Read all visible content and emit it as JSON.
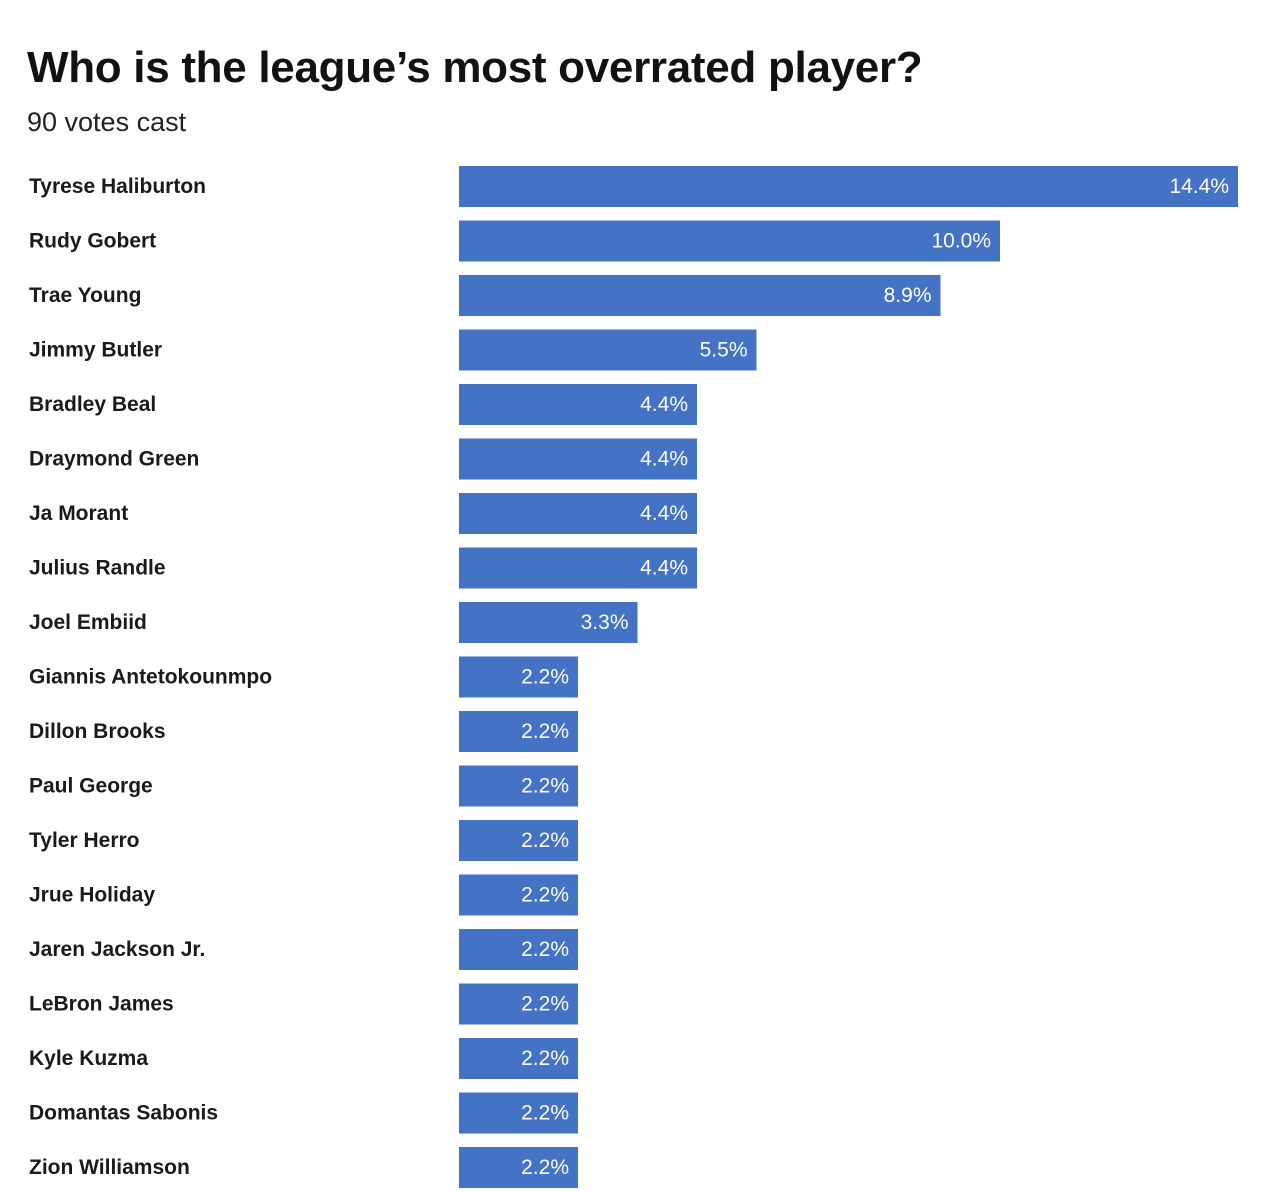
{
  "header": {
    "title": "Who is the league’s most overrated player?",
    "subtitle": "90 votes cast"
  },
  "colors": {
    "bar": "#4472c4",
    "value_label": "#ffffff",
    "category_label": "#1a1a1a"
  },
  "chart_data": {
    "type": "bar",
    "orientation": "horizontal",
    "title": "Who is the league’s most overrated player?",
    "subtitle": "90 votes cast",
    "xlabel": "",
    "ylabel": "",
    "value_suffix": "%",
    "xlim": [
      0,
      14.4
    ],
    "grid": false,
    "legend": "none",
    "categories": [
      "Tyrese Haliburton",
      "Rudy Gobert",
      "Trae Young",
      "Jimmy Butler",
      "Bradley Beal",
      "Draymond Green",
      "Ja Morant",
      "Julius Randle",
      "Joel Embiid",
      "Giannis Antetokounmpo",
      "Dillon Brooks",
      "Paul George",
      "Tyler Herro",
      "Jrue Holiday",
      "Jaren Jackson Jr.",
      "LeBron James",
      "Kyle Kuzma",
      "Domantas Sabonis",
      "Zion Williamson"
    ],
    "values": [
      14.4,
      10.0,
      8.9,
      5.5,
      4.4,
      4.4,
      4.4,
      4.4,
      3.3,
      2.2,
      2.2,
      2.2,
      2.2,
      2.2,
      2.2,
      2.2,
      2.2,
      2.2,
      2.2
    ],
    "value_labels": [
      "14.4%",
      "10.0%",
      "8.9%",
      "5.5%",
      "4.4%",
      "4.4%",
      "4.4%",
      "4.4%",
      "3.3%",
      "2.2%",
      "2.2%",
      "2.2%",
      "2.2%",
      "2.2%",
      "2.2%",
      "2.2%",
      "2.2%",
      "2.2%",
      "2.2%"
    ]
  }
}
